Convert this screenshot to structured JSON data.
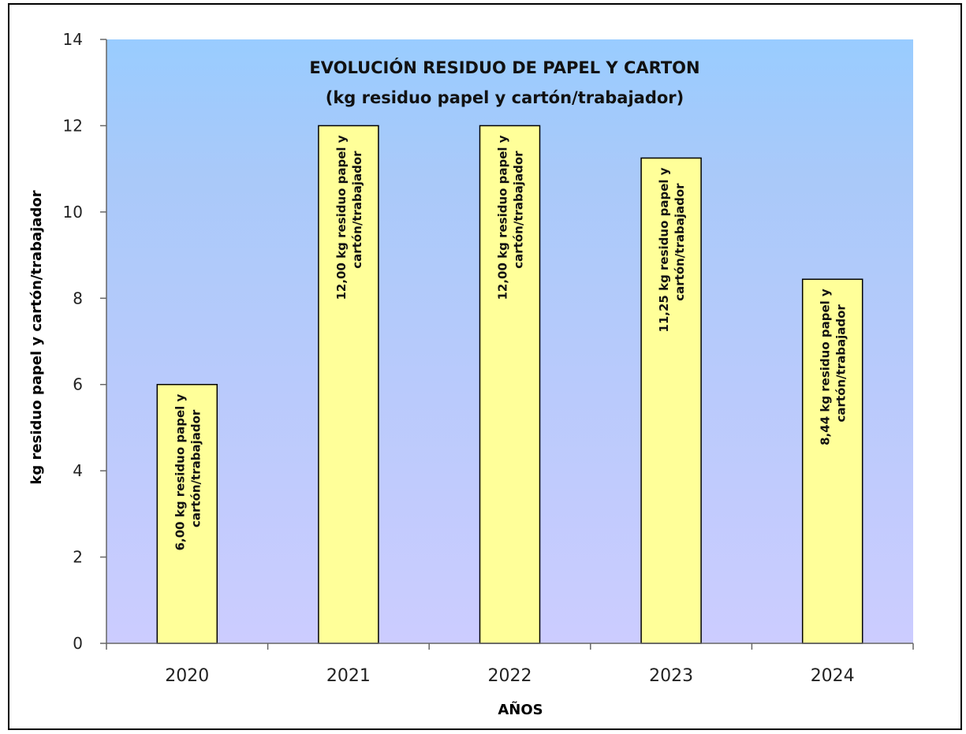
{
  "chart_data": {
    "type": "bar",
    "title": "EVOLUCIÓN RESIDUO DE PAPEL Y CARTON",
    "subtitle": "(kg residuo papel y cartón/trabajador)",
    "xlabel": "AÑOS",
    "ylabel": "kg residuo papel y cartón/trabajador",
    "ylim": [
      0,
      14
    ],
    "yticks": [
      "0",
      "2",
      "4",
      "6",
      "8",
      "10",
      "12",
      "14"
    ],
    "categories": [
      "2020",
      "2021",
      "2022",
      "2023",
      "2024"
    ],
    "values": [
      6.0,
      12.0,
      12.0,
      11.25,
      8.44
    ],
    "data_labels": [
      [
        "6,00  kg residuo papel y",
        "cartón/trabajador"
      ],
      [
        "12,00 kg residuo papel y",
        "cartón/trabajador"
      ],
      [
        "12,00 kg  residuo papel y",
        "cartón/trabajador"
      ],
      [
        "11,25  kg  residuo papel y",
        "cartón/trabajador"
      ],
      [
        "8,44 kg  residuo papel y",
        "cartón/trabajador"
      ]
    ],
    "grid": false,
    "colors": {
      "bar_fill": "#ffff99",
      "bar_stroke": "#000000",
      "plot_bg_top": "#99ccff",
      "plot_bg_bottom": "#ccccff"
    }
  }
}
